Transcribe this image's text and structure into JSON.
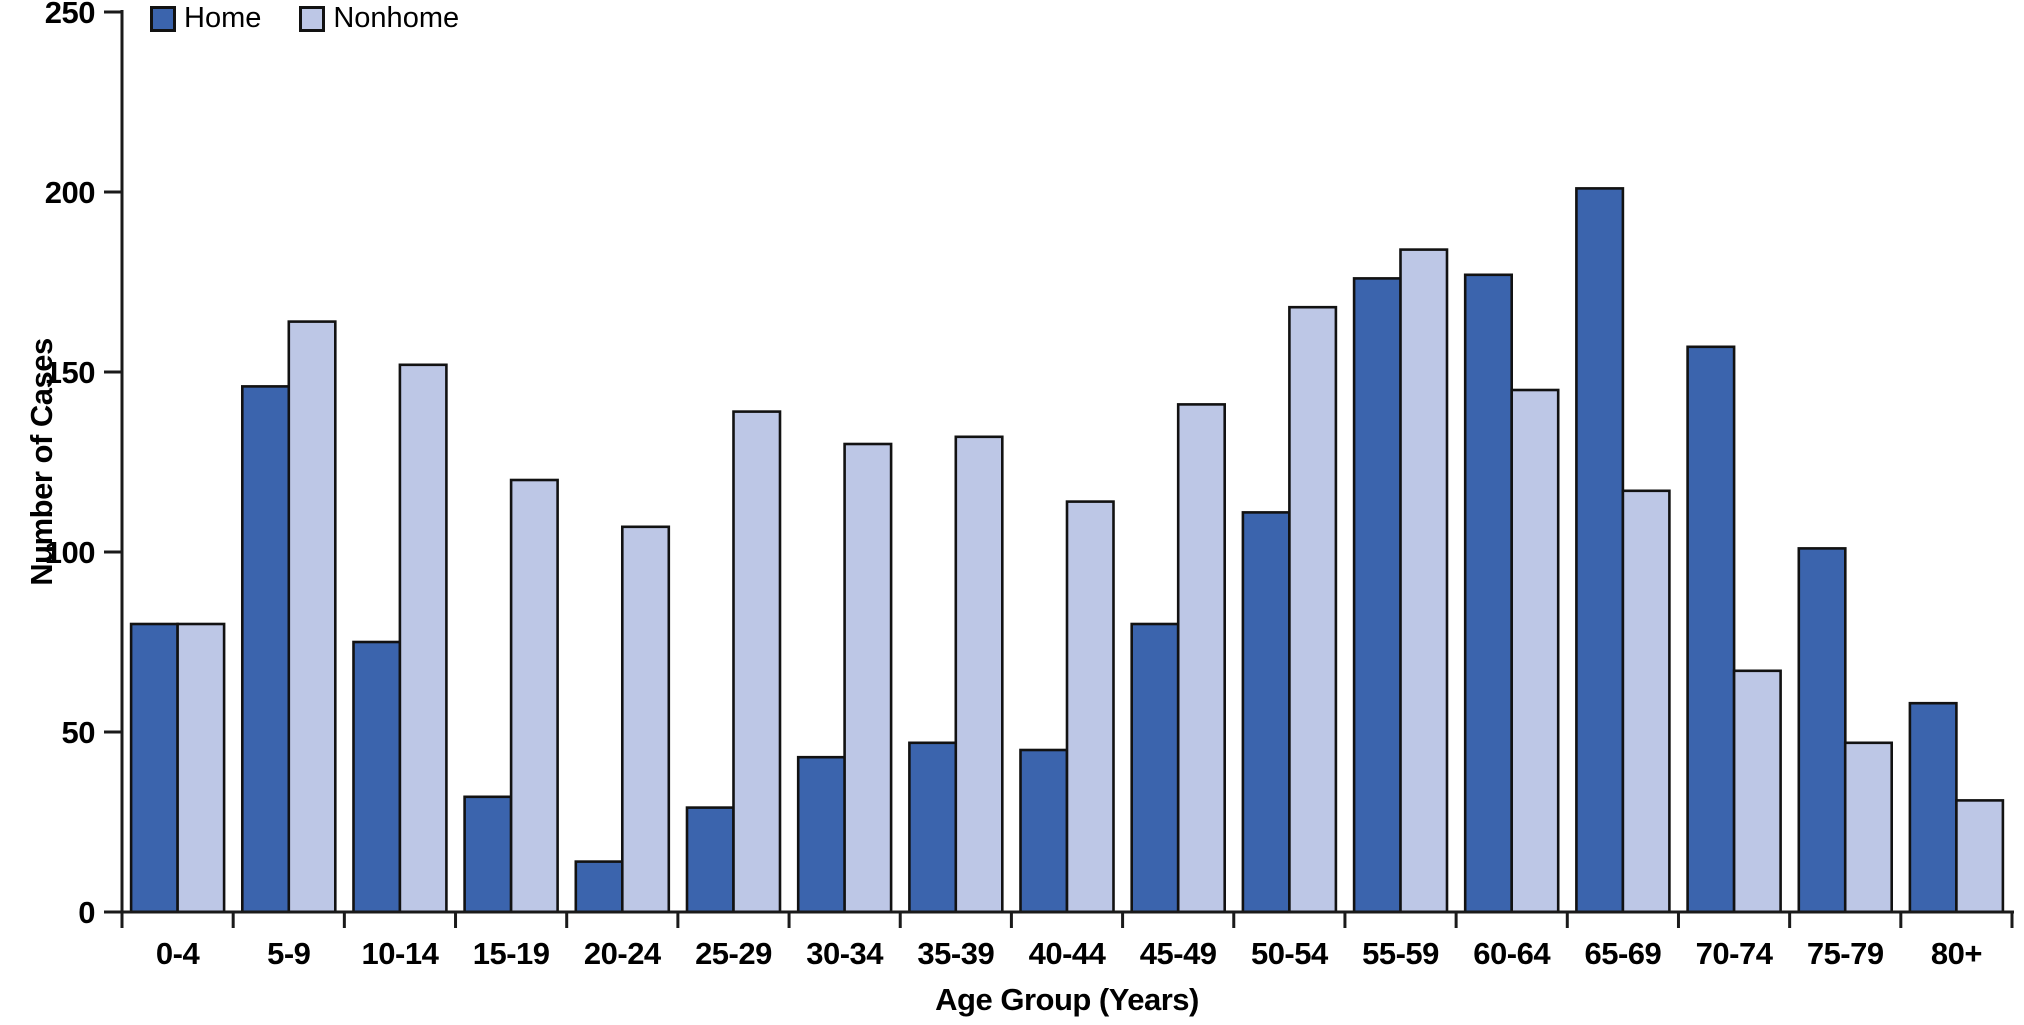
{
  "chart_data": {
    "type": "bar",
    "title": "",
    "xlabel": "Age Group (Years)",
    "ylabel": "Number of Cases",
    "ylim": [
      0,
      250
    ],
    "y_ticks": [
      0,
      50,
      100,
      150,
      200,
      250
    ],
    "grid": false,
    "legend_position": "top-left",
    "categories": [
      "0-4",
      "5-9",
      "10-14",
      "15-19",
      "20-24",
      "25-29",
      "30-34",
      "35-39",
      "40-44",
      "45-49",
      "50-54",
      "55-59",
      "60-64",
      "65-69",
      "70-74",
      "75-79",
      "80+"
    ],
    "series": [
      {
        "name": "Home",
        "color": "#3B64AD",
        "values": [
          80,
          146,
          75,
          32,
          14,
          29,
          43,
          47,
          45,
          80,
          111,
          176,
          177,
          201,
          157,
          101,
          58
        ]
      },
      {
        "name": "Nonhome",
        "color": "#BDC7E6",
        "values": [
          80,
          164,
          152,
          120,
          107,
          139,
          130,
          132,
          114,
          141,
          168,
          184,
          145,
          117,
          67,
          47,
          31
        ]
      }
    ]
  },
  "legend": {
    "items": [
      {
        "label": "Home",
        "color": "#3B64AD"
      },
      {
        "label": "Nonhome",
        "color": "#BDC7E6"
      }
    ]
  },
  "style": {
    "axis_color": "#1a1a1a",
    "bar_border_color": "#121212",
    "background": "#ffffff"
  }
}
